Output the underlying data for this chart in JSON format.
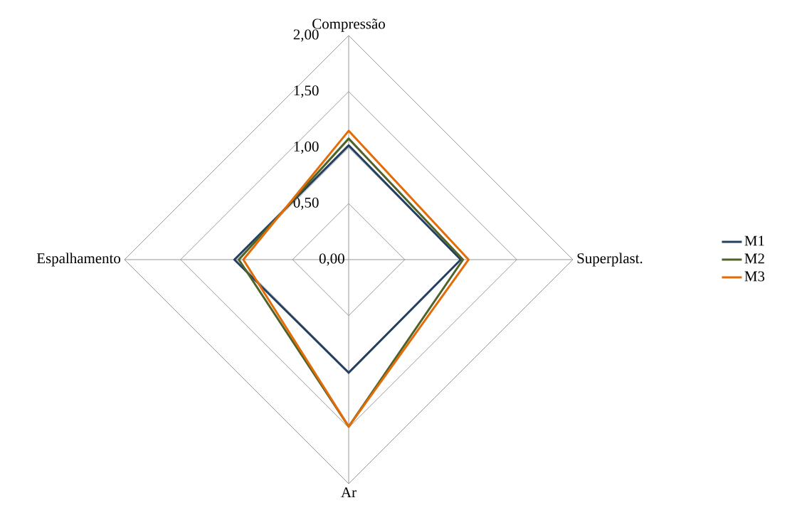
{
  "chart_data": {
    "type": "radar",
    "categories": [
      "Compressão",
      "Superplast.",
      "Ar",
      "Espalhamento"
    ],
    "series": [
      {
        "name": "M1",
        "color": "#243f60",
        "values": [
          1.02,
          1.0,
          1.01,
          1.02
        ]
      },
      {
        "name": "M2",
        "color": "#4f6228",
        "values": [
          1.08,
          1.02,
          1.49,
          0.98
        ]
      },
      {
        "name": "M3",
        "color": "#e36c09",
        "values": [
          1.15,
          1.07,
          1.49,
          0.94
        ]
      }
    ],
    "ylim": [
      0,
      2
    ],
    "yticks": [
      {
        "value": 0,
        "label": "0,00"
      },
      {
        "value": 0.5,
        "label": "0,50"
      },
      {
        "value": 1,
        "label": "1,00"
      },
      {
        "value": 1.5,
        "label": "1,50"
      },
      {
        "value": 2,
        "label": "2,00"
      }
    ],
    "grid": true,
    "legend": "right"
  }
}
